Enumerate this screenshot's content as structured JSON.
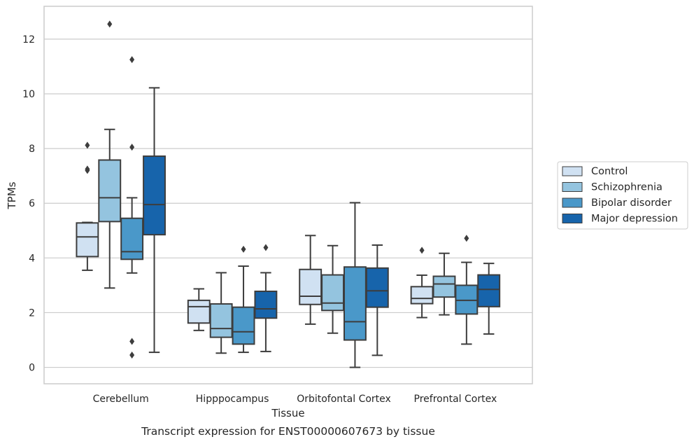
{
  "chart_data": {
    "type": "box",
    "caption": "Transcript expression for ENST00000607673 by tissue",
    "xlabel": "Tissue",
    "ylabel": "TPMs",
    "ylim": [
      -0.6,
      13.2
    ],
    "yticks": [
      0,
      2,
      4,
      6,
      8,
      10,
      12
    ],
    "grid": true,
    "legend_position": "right",
    "categories": [
      "Cerebellum",
      "Hipppocampus",
      "Orbitofontal Cortex",
      "Prefrontal Cortex"
    ],
    "series": [
      {
        "name": "Control",
        "color": "#d0e1f2",
        "boxes": [
          {
            "whislo": 3.55,
            "q1": 4.05,
            "med": 4.77,
            "q3": 5.28,
            "whishi": 5.3,
            "fliers": [
              7.2,
              7.25,
              8.12
            ]
          },
          {
            "whislo": 1.35,
            "q1": 1.62,
            "med": 2.22,
            "q3": 2.45,
            "whishi": 2.87,
            "fliers": []
          },
          {
            "whislo": 1.58,
            "q1": 2.3,
            "med": 2.6,
            "q3": 3.58,
            "whishi": 4.82,
            "fliers": []
          },
          {
            "whislo": 1.82,
            "q1": 2.33,
            "med": 2.52,
            "q3": 2.95,
            "whishi": 3.37,
            "fliers": [
              4.28
            ]
          }
        ]
      },
      {
        "name": "Schizophrenia",
        "color": "#94c4df",
        "boxes": [
          {
            "whislo": 2.9,
            "q1": 5.33,
            "med": 6.2,
            "q3": 7.58,
            "whishi": 8.7,
            "fliers": [
              12.55
            ]
          },
          {
            "whislo": 0.52,
            "q1": 1.1,
            "med": 1.42,
            "q3": 2.32,
            "whishi": 3.46,
            "fliers": []
          },
          {
            "whislo": 1.25,
            "q1": 2.08,
            "med": 2.35,
            "q3": 3.38,
            "whishi": 4.45,
            "fliers": []
          },
          {
            "whislo": 1.92,
            "q1": 2.57,
            "med": 3.05,
            "q3": 3.33,
            "whishi": 4.17,
            "fliers": []
          }
        ]
      },
      {
        "name": "Bipolar disorder",
        "color": "#4a98c9",
        "boxes": [
          {
            "whislo": 3.45,
            "q1": 3.95,
            "med": 4.23,
            "q3": 5.45,
            "whishi": 6.2,
            "fliers": [
              0.45,
              0.95,
              8.05,
              11.25
            ]
          },
          {
            "whislo": 0.55,
            "q1": 0.85,
            "med": 1.3,
            "q3": 2.2,
            "whishi": 3.7,
            "fliers": [
              4.32
            ]
          },
          {
            "whislo": 0.0,
            "q1": 1.0,
            "med": 1.67,
            "q3": 3.67,
            "whishi": 6.02,
            "fliers": []
          },
          {
            "whislo": 0.85,
            "q1": 1.95,
            "med": 2.45,
            "q3": 3.0,
            "whishi": 3.84,
            "fliers": [
              4.72
            ]
          }
        ]
      },
      {
        "name": "Major depression",
        "color": "#1764ab",
        "boxes": [
          {
            "whislo": 0.55,
            "q1": 4.85,
            "med": 5.95,
            "q3": 7.72,
            "whishi": 10.22,
            "fliers": []
          },
          {
            "whislo": 0.58,
            "q1": 1.8,
            "med": 2.14,
            "q3": 2.78,
            "whishi": 3.46,
            "fliers": [
              4.38
            ]
          },
          {
            "whislo": 0.44,
            "q1": 2.2,
            "med": 2.8,
            "q3": 3.63,
            "whishi": 4.47,
            "fliers": []
          },
          {
            "whislo": 1.22,
            "q1": 2.22,
            "med": 2.85,
            "q3": 3.38,
            "whishi": 3.8,
            "fliers": []
          }
        ]
      }
    ]
  }
}
